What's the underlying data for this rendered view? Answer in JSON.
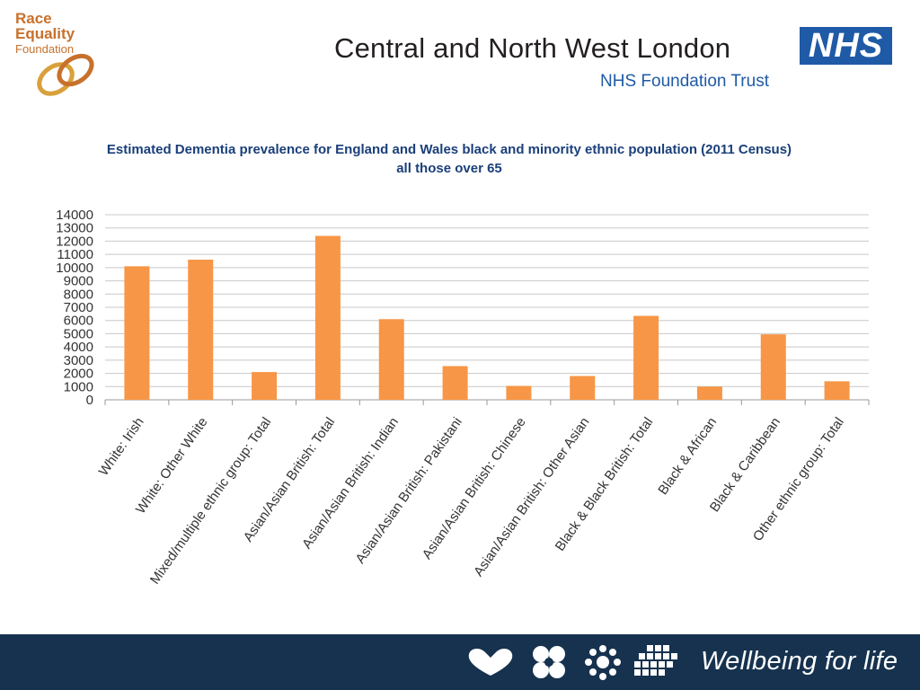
{
  "header": {
    "logo_left": {
      "line1": "Race",
      "line2": "Equality",
      "line3": "Foundation"
    },
    "trust_name": "Central and North West London",
    "trust_subtitle": "NHS Foundation Trust",
    "nhs_logo_text": "NHS"
  },
  "chart_data": {
    "type": "bar",
    "title": "Estimated Dementia prevalence for England and Wales black and minority ethnic population (2011 Census)",
    "subtitle": "all those over 65",
    "xlabel": "",
    "ylabel": "",
    "ylim": [
      0,
      14000
    ],
    "yticks": [
      0,
      1000,
      2000,
      3000,
      4000,
      5000,
      6000,
      7000,
      8000,
      9000,
      10000,
      11000,
      12000,
      13000,
      14000
    ],
    "grid": true,
    "legend": "none",
    "bar_color": "#f79646",
    "categories": [
      "White: Irish",
      "White: Other White",
      "Mixed/multiple ethnic group: Total",
      "Asian/Asian British: Total",
      "Asian/Asian British: Indian",
      "Asian/Asian British: Pakistani",
      "Asian/Asian British: Chinese",
      "Asian/Asian British: Other Asian",
      "Black & Black British: Total",
      "Black & African",
      "Black & Caribbean",
      "Other ethnic group: Total"
    ],
    "values": [
      10100,
      10600,
      2100,
      12400,
      6100,
      2550,
      1050,
      1800,
      6350,
      1000,
      4950,
      1400
    ]
  },
  "footer": {
    "slogan": "Wellbeing for life",
    "background": "#16324f",
    "icons": [
      "heart-icon",
      "flower-icon",
      "ring-flower-icon",
      "dot-grid-icon"
    ]
  }
}
